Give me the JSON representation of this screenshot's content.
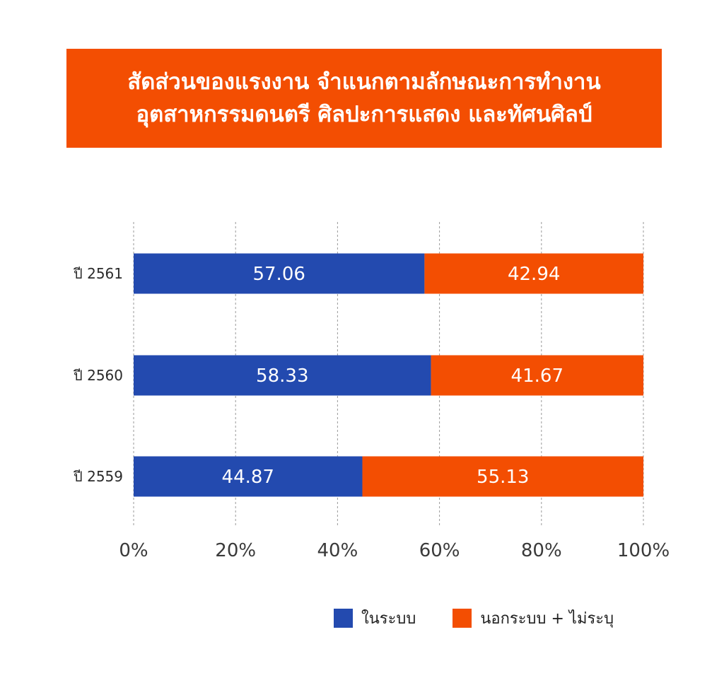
{
  "title": {
    "line1": "สัดส่วนของแรงงาน จำแนกตามลักษณะการทำงาน",
    "line2": "อุตสาหกรรมดนตรี ศิลปะการแสดง และทัศนศิลป์"
  },
  "colors": {
    "banner": "#f34e02",
    "formal": "#234aaf",
    "informal": "#f34e02",
    "grid": "#9a9a9a"
  },
  "chart_data": {
    "type": "bar",
    "orientation": "horizontal",
    "stacked": true,
    "categories": [
      "ปี 2561",
      "ปี 2560",
      "ปี 2559"
    ],
    "series": [
      {
        "name": "ในระบบ",
        "values": [
          57.06,
          58.33,
          44.87
        ]
      },
      {
        "name": "นอกระบบ + ไม่ระบุ",
        "values": [
          42.94,
          41.67,
          55.13
        ]
      }
    ],
    "data_labels": [
      [
        "57.06",
        "58.33",
        "44.87"
      ],
      [
        "42.94",
        "41.67",
        "55.13"
      ]
    ],
    "xlim": [
      0,
      100
    ],
    "xticks": [
      "0%",
      "20%",
      "40%",
      "60%",
      "80%",
      "100%"
    ],
    "grid": "vertical dashed",
    "legend": "bottom"
  }
}
